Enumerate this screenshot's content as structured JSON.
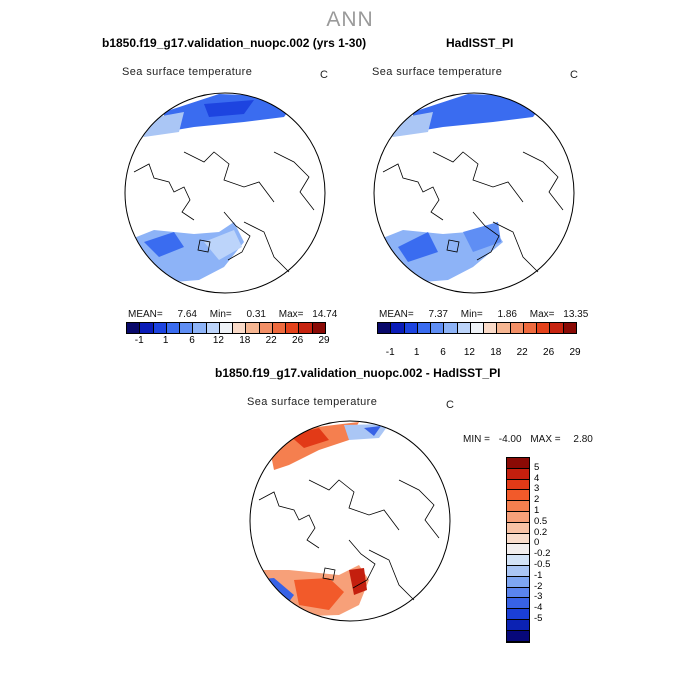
{
  "main_title": "ANN",
  "panels": [
    {
      "title": "b1850.f19_g17.validation_nuopc.002 (yrs 1-30)",
      "field": "Sea surface temperature",
      "unit": "C",
      "mean_label": "MEAN=",
      "mean": "7.64",
      "min_label": "Min=",
      "min": "0.31",
      "max_label": "Max=",
      "max": "14.74"
    },
    {
      "title": "HadISST_PI",
      "field": "Sea surface temperature",
      "unit": "C",
      "mean_label": "MEAN=",
      "mean": "7.37",
      "min_label": "Min=",
      "min": "1.86",
      "max_label": "Max=",
      "max": "13.35"
    }
  ],
  "colorbar": {
    "colors": [
      "#08086b",
      "#0a1cb8",
      "#1d44e0",
      "#3a6cf0",
      "#5f8ef4",
      "#8db3f7",
      "#bcd4fa",
      "#eef2f7",
      "#f9dac8",
      "#f6b692",
      "#f28f66",
      "#ee6a3e",
      "#e4421b",
      "#c72410",
      "#8a0a05"
    ],
    "tick_labels": [
      "-1",
      "1",
      "6",
      "12",
      "18",
      "22",
      "26",
      "29"
    ]
  },
  "diff_panel": {
    "title": "b1850.f19_g17.validation_nuopc.002 - HadISST_PI",
    "field": "Sea surface temperature",
    "unit": "C",
    "min_label": "MIN =",
    "min": "-4.00",
    "max_label": "MAX =",
    "max": "2.80"
  },
  "diff_colorbar": {
    "colors": [
      "#8a0a05",
      "#c41f0e",
      "#e23a17",
      "#f25a2a",
      "#f57f4f",
      "#f7a079",
      "#f8c2a5",
      "#f9dccb",
      "#f2eeee",
      "#d3e3f7",
      "#aac6f5",
      "#7ea6f2",
      "#5a84ee",
      "#3862e6",
      "#1a3fd7",
      "#0b22b3",
      "#07087a"
    ],
    "labels": [
      "5",
      "4",
      "3",
      "2",
      "1",
      "0.5",
      "0.2",
      "0",
      "-0.2",
      "-0.5",
      "-1",
      "-2",
      "-3",
      "-4",
      "-5"
    ]
  }
}
